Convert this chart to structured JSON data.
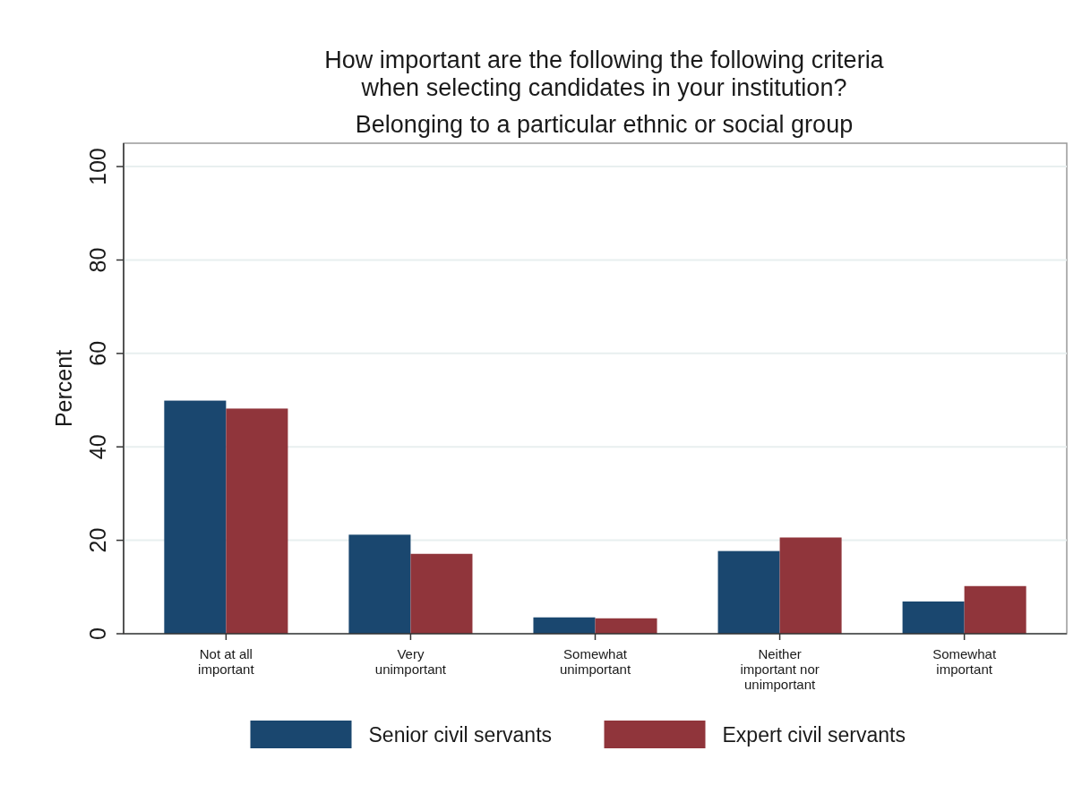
{
  "chart_data": {
    "type": "bar",
    "title": "How important are the following the following criteria\nwhen selecting candidates in your institution?",
    "subtitle": "Belonging to a particular ethnic or social group",
    "ylabel": "Percent",
    "categories": [
      "Not at all important",
      "Very unimportant",
      "Somewhat unimportant",
      "Neither important nor unimportant",
      "Somewhat important"
    ],
    "series": [
      {
        "name": "Senior civil servants",
        "color": "#1a476f",
        "values": [
          49.9,
          21.2,
          3.5,
          17.7,
          6.9
        ]
      },
      {
        "name": "Expert civil servants",
        "color": "#90353b",
        "values": [
          48.2,
          17.1,
          3.3,
          20.6,
          10.2
        ]
      }
    ],
    "ylim": [
      0,
      105
    ],
    "yticks": [
      0,
      20,
      40,
      60,
      80,
      100
    ],
    "grid": "y",
    "legend": "bottom"
  }
}
